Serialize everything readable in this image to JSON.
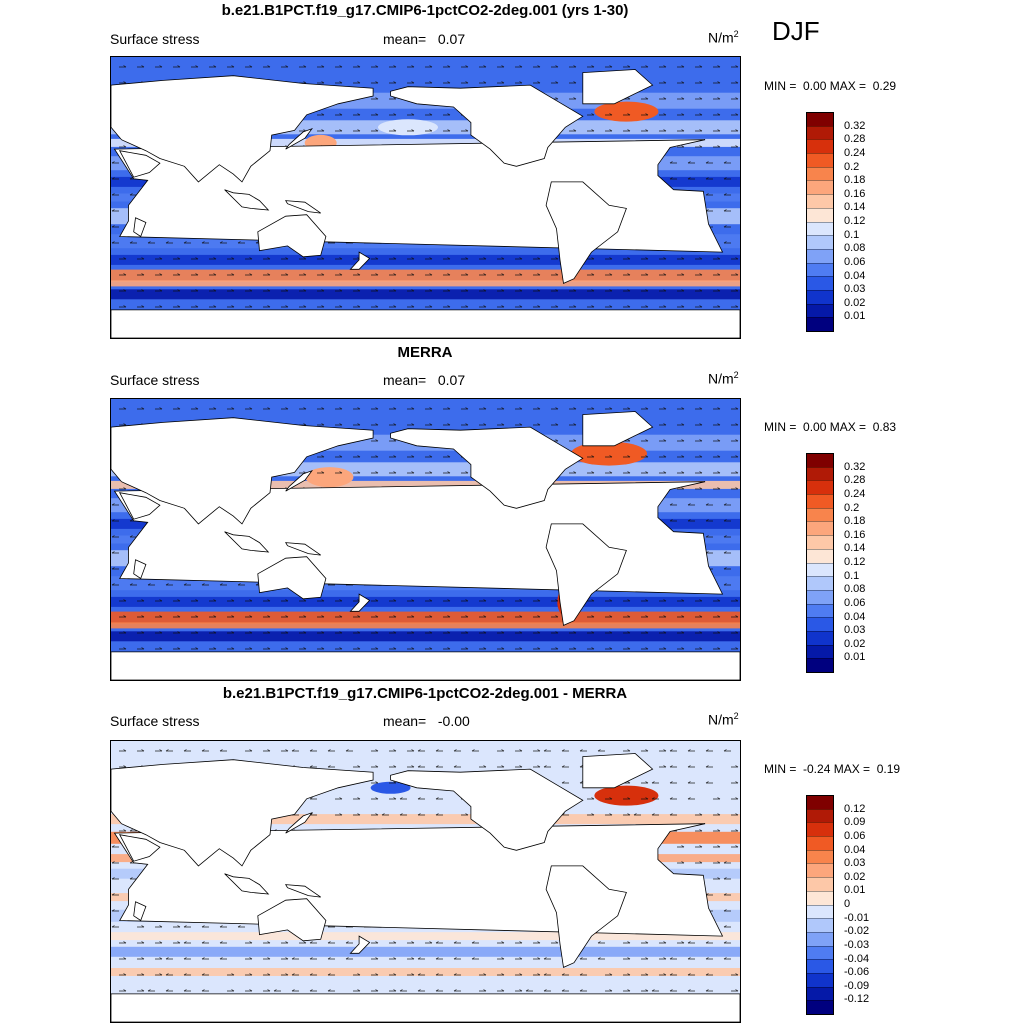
{
  "season": "DJF",
  "panels": [
    {
      "title": "b.e21.B1PCT.f19_g17.CMIP6-1pctCO2-2deg.001 (yrs 1-30)",
      "variable": "Surface stress",
      "mean_label": "mean=",
      "mean_value": "0.07",
      "units_base": "N/m",
      "units_exp": "2",
      "min_label": "MIN =",
      "min_value": "0.00",
      "max_label": "MAX =",
      "max_value": "0.29",
      "colorbar": {
        "labels": [
          "0.32",
          "0.28",
          "0.24",
          "0.2",
          "0.18",
          "0.16",
          "0.14",
          "0.12",
          "0.1",
          "0.08",
          "0.06",
          "0.04",
          "0.03",
          "0.02",
          "0.01"
        ],
        "colors": [
          "#7f0000",
          "#b01a06",
          "#d7300c",
          "#f05a24",
          "#f8844c",
          "#fca67c",
          "#fdc8a8",
          "#fde6d6",
          "#dbe6fd",
          "#b0c8fb",
          "#7fa2f7",
          "#4f7cf2",
          "#2a58e6",
          "#1034cc",
          "#0519a8",
          "#00007f"
        ]
      },
      "map_style": "model"
    },
    {
      "title": "MERRA",
      "variable": "Surface stress",
      "mean_label": "mean=",
      "mean_value": "0.07",
      "units_base": "N/m",
      "units_exp": "2",
      "min_label": "MIN =",
      "min_value": "0.00",
      "max_label": "MAX =",
      "max_value": "0.83",
      "colorbar": {
        "labels": [
          "0.32",
          "0.28",
          "0.24",
          "0.2",
          "0.18",
          "0.16",
          "0.14",
          "0.12",
          "0.1",
          "0.08",
          "0.06",
          "0.04",
          "0.03",
          "0.02",
          "0.01"
        ],
        "colors": [
          "#7f0000",
          "#b01a06",
          "#d7300c",
          "#f05a24",
          "#f8844c",
          "#fca67c",
          "#fdc8a8",
          "#fde6d6",
          "#dbe6fd",
          "#b0c8fb",
          "#7fa2f7",
          "#4f7cf2",
          "#2a58e6",
          "#1034cc",
          "#0519a8",
          "#00007f"
        ]
      },
      "map_style": "obs"
    },
    {
      "title": "b.e21.B1PCT.f19_g17.CMIP6-1pctCO2-2deg.001 - MERRA",
      "variable": "Surface stress",
      "mean_label": "mean=",
      "mean_value": "-0.00",
      "units_base": "N/m",
      "units_exp": "2",
      "min_label": "MIN =",
      "min_value": "-0.24",
      "max_label": "MAX =",
      "max_value": "0.19",
      "colorbar": {
        "labels": [
          "0.12",
          "0.09",
          "0.06",
          "0.04",
          "0.03",
          "0.02",
          "0.01",
          "0",
          "-0.01",
          "-0.02",
          "-0.03",
          "-0.04",
          "-0.06",
          "-0.09",
          "-0.12"
        ],
        "colors": [
          "#7f0000",
          "#b01a06",
          "#d7300c",
          "#f05a24",
          "#f8844c",
          "#fca67c",
          "#fdc8a8",
          "#fde6d6",
          "#dbe6fd",
          "#b0c8fb",
          "#7fa2f7",
          "#4f7cf2",
          "#2a58e6",
          "#1034cc",
          "#0519a8",
          "#00007f"
        ]
      },
      "map_style": "diff"
    }
  ]
}
